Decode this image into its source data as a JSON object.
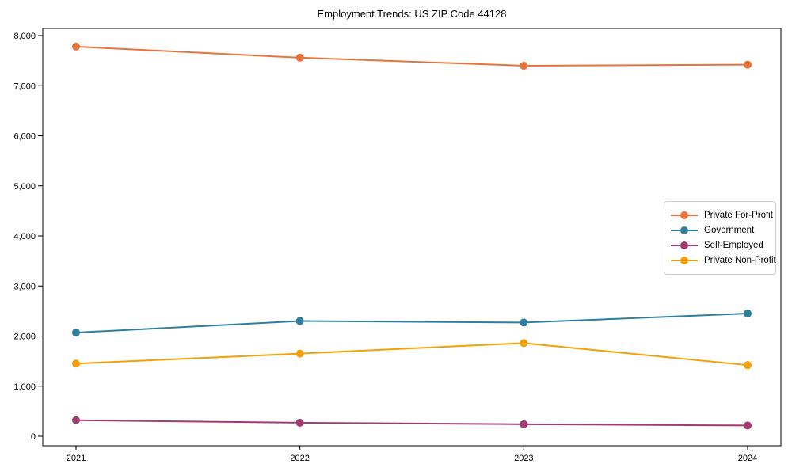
{
  "title": "Employment Trends: US ZIP Code 44128",
  "chart_data": {
    "type": "line",
    "title": "Employment Trends: US ZIP Code 44128",
    "xlabel": "",
    "ylabel": "",
    "x": [
      2021,
      2022,
      2023,
      2024
    ],
    "x_tick_labels": [
      "2021",
      "2022",
      "2023",
      "2024"
    ],
    "ylim": [
      0,
      8000
    ],
    "y_tick_step": 1000,
    "y_tick_labels": [
      "0",
      "1,000",
      "2,000",
      "3,000",
      "4,000",
      "5,000",
      "6,000",
      "7,000",
      "8,000"
    ],
    "grid": false,
    "legend_position": "center-right",
    "axis_box": true,
    "background_color": "#ffffff",
    "spine_color": "#000000",
    "series": [
      {
        "name": "Private For-Profit",
        "color": "#E8743B",
        "values": [
          7780,
          7560,
          7400,
          7420
        ]
      },
      {
        "name": "Government",
        "color": "#2E7F9E",
        "values": [
          2070,
          2300,
          2270,
          2450
        ]
      },
      {
        "name": "Self-Employed",
        "color": "#A23B72",
        "values": [
          320,
          270,
          240,
          215
        ]
      },
      {
        "name": "Private Non-Profit",
        "color": "#F5A006",
        "values": [
          1450,
          1650,
          1860,
          1420
        ]
      }
    ]
  }
}
